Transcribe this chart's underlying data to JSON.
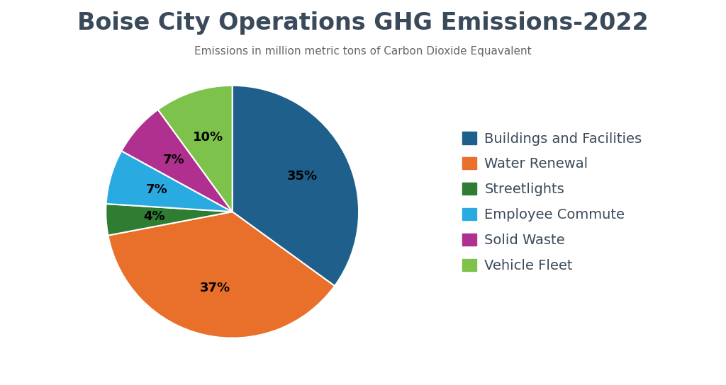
{
  "title": "Boise City Operations GHG Emissions-2022",
  "subtitle": "Emissions in million metric tons of Carbon Dioxide Equavalent",
  "labels": [
    "Buildings and Facilities",
    "Water Renewal",
    "Streetlights",
    "Employee Commute",
    "Solid Waste",
    "Vehicle Fleet"
  ],
  "values": [
    35,
    37,
    4,
    7,
    7,
    10
  ],
  "colors": [
    "#1f5f8b",
    "#e8702a",
    "#2e7d32",
    "#29abe2",
    "#b03090",
    "#7dc24b"
  ],
  "background_color": "#ffffff",
  "title_fontsize": 24,
  "subtitle_fontsize": 11,
  "legend_fontsize": 14,
  "pct_fontsize": 13,
  "startangle": 90,
  "text_color": "#3a4a5a"
}
